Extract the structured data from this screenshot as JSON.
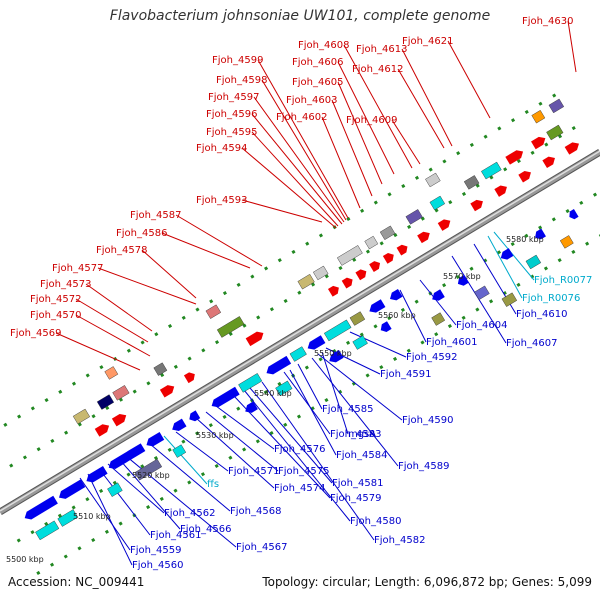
{
  "title": "Flavobacterium johnsoniae UW101, complete genome",
  "footer": {
    "accession": "Accession: NC_009441",
    "summary": "Topology: circular; Length: 6,096,872 bp; Genes: 5,099"
  },
  "colors": {
    "forward_label": "#cc0000",
    "reverse_label": "#0000cc",
    "rna_label": "#00aacc",
    "backbone": "#999999",
    "dots": "#228822"
  },
  "ticks": [
    "5500 kbp",
    "5510 kbp",
    "5520 kbp",
    "5530 kbp",
    "5540 kbp",
    "5550 kbp",
    "5560 kbp",
    "5570 kbp",
    "5580 kbp"
  ],
  "forward_labels": [
    "Fjoh_4569",
    "Fjoh_4570",
    "Fjoh_4572",
    "Fjoh_4573",
    "Fjoh_4577",
    "Fjoh_4578",
    "Fjoh_4586",
    "Fjoh_4587",
    "Fjoh_4593",
    "Fjoh_4594",
    "Fjoh_4595",
    "Fjoh_4596",
    "Fjoh_4597",
    "Fjoh_4598",
    "Fjoh_4599",
    "Fjoh_4602",
    "Fjoh_4603",
    "Fjoh_4605",
    "Fjoh_4606",
    "Fjoh_4608",
    "Fjoh_4609",
    "Fjoh_4612",
    "Fjoh_4613",
    "Fjoh_4621",
    "Fjoh_4630"
  ],
  "reverse_labels": [
    "Fjoh_4559",
    "Fjoh_4560",
    "Fjoh_4561",
    "Fjoh_4562",
    "Fjoh_4566",
    "Fjoh_4567",
    "Fjoh_4568",
    "Fjoh_4571",
    "Fjoh_4574",
    "Fjoh_4575",
    "Fjoh_4576",
    "Fjoh_4579",
    "Fjoh_4580",
    "Fjoh_4581",
    "Fjoh_4582",
    "Fjoh_4583",
    "Fjoh_4584",
    "Fjoh_4585",
    "Fjoh_4589",
    "Fjoh_4590",
    "mgsA",
    "Fjoh_4591",
    "Fjoh_4592",
    "Fjoh_4601",
    "Fjoh_4604",
    "Fjoh_4607",
    "Fjoh_4610"
  ],
  "rna_labels": [
    "ffs",
    "Fjoh_R0077",
    "Fjoh_R0076"
  ]
}
